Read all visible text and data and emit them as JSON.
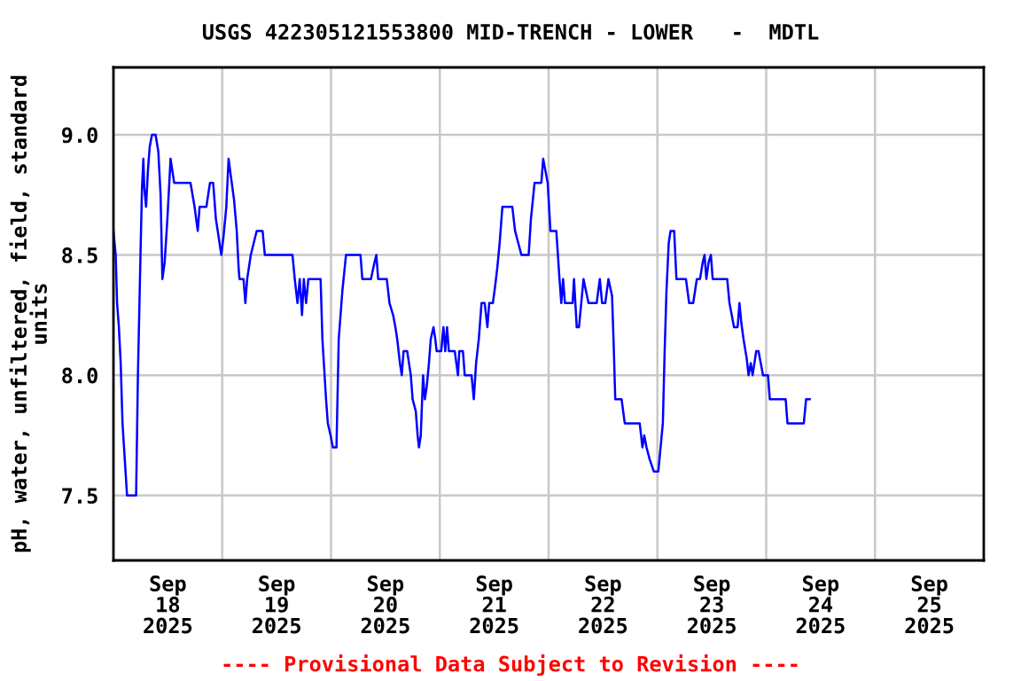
{
  "chart_data": {
    "type": "line",
    "title": "USGS 422305121553800 MID-TRENCH - LOWER   -  MDTL",
    "ylabel": "pH, water, unfiltered, field, standard\nunits",
    "annotations": [
      "---- Provisional Data Subject to Revision ----"
    ],
    "xlim": [
      "2025-09-18T00:00",
      "2025-09-26T00:00"
    ],
    "xticks": [
      {
        "value": "2025-09-18T00:00",
        "label": null
      },
      {
        "value": "2025-09-18T12:00",
        "label": "Sep\n18\n2025"
      },
      {
        "value": "2025-09-19T00:00",
        "label": null
      },
      {
        "value": "2025-09-19T12:00",
        "label": "Sep\n19\n2025"
      },
      {
        "value": "2025-09-20T00:00",
        "label": null
      },
      {
        "value": "2025-09-20T12:00",
        "label": "Sep\n20\n2025"
      },
      {
        "value": "2025-09-21T00:00",
        "label": null
      },
      {
        "value": "2025-09-21T12:00",
        "label": "Sep\n21\n2025"
      },
      {
        "value": "2025-09-22T00:00",
        "label": null
      },
      {
        "value": "2025-09-22T12:00",
        "label": "Sep\n22\n2025"
      },
      {
        "value": "2025-09-23T00:00",
        "label": null
      },
      {
        "value": "2025-09-23T12:00",
        "label": "Sep\n23\n2025"
      },
      {
        "value": "2025-09-24T00:00",
        "label": null
      },
      {
        "value": "2025-09-24T12:00",
        "label": "Sep\n24\n2025"
      },
      {
        "value": "2025-09-25T00:00",
        "label": null
      },
      {
        "value": "2025-09-25T12:00",
        "label": "Sep\n25\n2025"
      },
      {
        "value": "2025-09-26T00:00",
        "label": null
      }
    ],
    "ylim": [
      7.23,
      9.28
    ],
    "yticks": [
      {
        "value": 7.5,
        "label": "7.5"
      },
      {
        "value": 8.0,
        "label": "8.0"
      },
      {
        "value": 8.5,
        "label": "8.5"
      },
      {
        "value": 9.0,
        "label": "9.0"
      }
    ],
    "grid": true,
    "legend": false,
    "line_style": "solid",
    "marker": "none",
    "series": [
      {
        "color": "#0000ff",
        "x": [
          "2025-09-18T00:00",
          "2025-09-18T00:30",
          "2025-09-18T00:48",
          "2025-09-18T01:12",
          "2025-09-18T01:36",
          "2025-09-18T02:00",
          "2025-09-18T02:30",
          "2025-09-18T03:00",
          "2025-09-18T05:00",
          "2025-09-18T05:24",
          "2025-09-18T06:00",
          "2025-09-18T06:18",
          "2025-09-18T06:36",
          "2025-09-18T06:48",
          "2025-09-18T07:12",
          "2025-09-18T07:36",
          "2025-09-18T08:00",
          "2025-09-18T08:30",
          "2025-09-18T09:18",
          "2025-09-18T09:54",
          "2025-09-18T10:24",
          "2025-09-18T10:48",
          "2025-09-18T11:18",
          "2025-09-18T11:54",
          "2025-09-18T12:36",
          "2025-09-18T13:24",
          "2025-09-18T17:00",
          "2025-09-18T17:54",
          "2025-09-18T18:36",
          "2025-09-18T19:00",
          "2025-09-18T20:30",
          "2025-09-18T21:18",
          "2025-09-18T22:00",
          "2025-09-18T22:36",
          "2025-09-18T23:00",
          "2025-09-18T23:48",
          "2025-09-19T00:18",
          "2025-09-19T00:54",
          "2025-09-19T01:24",
          "2025-09-19T02:06",
          "2025-09-19T02:36",
          "2025-09-19T03:12",
          "2025-09-19T03:36",
          "2025-09-19T03:48",
          "2025-09-19T04:42",
          "2025-09-19T05:06",
          "2025-09-19T05:30",
          "2025-09-19T06:18",
          "2025-09-19T07:36",
          "2025-09-19T08:54",
          "2025-09-19T09:24",
          "2025-09-19T15:30",
          "2025-09-19T16:00",
          "2025-09-19T16:36",
          "2025-09-19T17:06",
          "2025-09-19T17:36",
          "2025-09-19T18:00",
          "2025-09-19T18:30",
          "2025-09-19T19:00",
          "2025-09-19T19:54",
          "2025-09-19T21:42",
          "2025-09-19T22:06",
          "2025-09-19T22:54",
          "2025-09-19T23:18",
          "2025-09-19T23:54",
          "2025-09-20T00:24",
          "2025-09-20T01:12",
          "2025-09-20T01:42",
          "2025-09-20T02:30",
          "2025-09-20T03:18",
          "2025-09-20T06:30",
          "2025-09-20T06:54",
          "2025-09-20T08:48",
          "2025-09-20T09:36",
          "2025-09-20T10:00",
          "2025-09-20T10:24",
          "2025-09-20T12:18",
          "2025-09-20T12:54",
          "2025-09-20T13:42",
          "2025-09-20T14:12",
          "2025-09-20T14:36",
          "2025-09-20T15:12",
          "2025-09-20T15:36",
          "2025-09-20T16:00",
          "2025-09-20T16:48",
          "2025-09-20T17:12",
          "2025-09-20T17:36",
          "2025-09-20T18:00",
          "2025-09-20T18:42",
          "2025-09-20T19:06",
          "2025-09-20T19:24",
          "2025-09-20T19:48",
          "2025-09-20T20:18",
          "2025-09-20T20:42",
          "2025-09-20T21:06",
          "2025-09-20T21:36",
          "2025-09-20T22:00",
          "2025-09-20T22:36",
          "2025-09-20T23:00",
          "2025-09-20T23:18",
          "2025-09-21T00:18",
          "2025-09-21T00:48",
          "2025-09-21T01:12",
          "2025-09-21T01:36",
          "2025-09-21T02:00",
          "2025-09-21T03:18",
          "2025-09-21T04:00",
          "2025-09-21T04:18",
          "2025-09-21T05:06",
          "2025-09-21T05:30",
          "2025-09-21T07:00",
          "2025-09-21T07:30",
          "2025-09-21T08:00",
          "2025-09-21T08:36",
          "2025-09-21T09:12",
          "2025-09-21T09:54",
          "2025-09-21T10:30",
          "2025-09-21T10:54",
          "2025-09-21T11:42",
          "2025-09-21T12:12",
          "2025-09-21T12:42",
          "2025-09-21T13:12",
          "2025-09-21T13:48",
          "2025-09-21T16:00",
          "2025-09-21T16:36",
          "2025-09-21T17:18",
          "2025-09-21T18:00",
          "2025-09-21T19:36",
          "2025-09-21T20:06",
          "2025-09-21T20:54",
          "2025-09-21T22:24",
          "2025-09-21T22:48",
          "2025-09-21T23:18",
          "2025-09-21T23:48",
          "2025-09-22T00:24",
          "2025-09-22T01:42",
          "2025-09-22T02:24",
          "2025-09-22T02:48",
          "2025-09-22T03:12",
          "2025-09-22T03:36",
          "2025-09-22T05:18",
          "2025-09-22T05:36",
          "2025-09-22T06:12",
          "2025-09-22T06:42",
          "2025-09-22T07:12",
          "2025-09-22T07:42",
          "2025-09-22T08:48",
          "2025-09-22T10:36",
          "2025-09-22T11:18",
          "2025-09-22T11:48",
          "2025-09-22T12:30",
          "2025-09-22T13:12",
          "2025-09-22T14:00",
          "2025-09-22T14:24",
          "2025-09-22T14:42",
          "2025-09-22T16:06",
          "2025-09-22T16:48",
          "2025-09-22T20:06",
          "2025-09-22T20:42",
          "2025-09-22T21:06",
          "2025-09-22T21:36",
          "2025-09-22T22:18",
          "2025-09-22T23:12",
          "2025-09-23T00:12",
          "2025-09-23T00:42",
          "2025-09-23T01:12",
          "2025-09-23T01:36",
          "2025-09-23T02:00",
          "2025-09-23T02:30",
          "2025-09-23T02:54",
          "2025-09-23T03:42",
          "2025-09-23T04:12",
          "2025-09-23T06:18",
          "2025-09-23T07:00",
          "2025-09-23T07:54",
          "2025-09-23T08:42",
          "2025-09-23T09:24",
          "2025-09-23T10:00",
          "2025-09-23T10:24",
          "2025-09-23T10:48",
          "2025-09-23T11:18",
          "2025-09-23T11:48",
          "2025-09-23T12:12",
          "2025-09-23T15:24",
          "2025-09-23T15:54",
          "2025-09-23T16:24",
          "2025-09-23T16:54",
          "2025-09-23T17:42",
          "2025-09-23T18:06",
          "2025-09-23T18:30",
          "2025-09-23T19:00",
          "2025-09-23T19:42",
          "2025-09-23T20:06",
          "2025-09-23T20:36",
          "2025-09-23T21:00",
          "2025-09-23T21:24",
          "2025-09-23T21:48",
          "2025-09-23T22:18",
          "2025-09-23T22:48",
          "2025-09-23T23:18",
          "2025-09-24T00:24",
          "2025-09-24T00:48",
          "2025-09-24T04:18",
          "2025-09-24T04:42",
          "2025-09-24T08:18",
          "2025-09-24T08:48",
          "2025-09-24T09:36"
        ],
        "values": [
          8.6,
          8.5,
          8.3,
          8.2,
          8.05,
          7.8,
          7.65,
          7.5,
          7.5,
          8.0,
          8.53,
          8.78,
          8.9,
          8.78,
          8.7,
          8.85,
          8.95,
          9.0,
          9.0,
          8.93,
          8.75,
          8.4,
          8.47,
          8.65,
          8.9,
          8.8,
          8.8,
          8.7,
          8.6,
          8.7,
          8.7,
          8.8,
          8.8,
          8.65,
          8.6,
          8.5,
          8.58,
          8.7,
          8.9,
          8.8,
          8.73,
          8.6,
          8.45,
          8.4,
          8.4,
          8.3,
          8.4,
          8.5,
          8.6,
          8.6,
          8.5,
          8.5,
          8.4,
          8.3,
          8.4,
          8.25,
          8.4,
          8.3,
          8.4,
          8.4,
          8.4,
          8.15,
          7.9,
          7.8,
          7.75,
          7.7,
          7.7,
          8.15,
          8.35,
          8.5,
          8.5,
          8.4,
          8.4,
          8.47,
          8.5,
          8.4,
          8.4,
          8.3,
          8.25,
          8.2,
          8.15,
          8.05,
          8.0,
          8.1,
          8.1,
          8.05,
          8.0,
          7.9,
          7.85,
          7.75,
          7.7,
          7.75,
          8.0,
          7.9,
          7.95,
          8.05,
          8.15,
          8.2,
          8.15,
          8.1,
          8.1,
          8.2,
          8.1,
          8.2,
          8.1,
          8.1,
          8.0,
          8.1,
          8.1,
          8.0,
          8.0,
          7.9,
          8.05,
          8.15,
          8.3,
          8.3,
          8.2,
          8.3,
          8.3,
          8.37,
          8.45,
          8.55,
          8.7,
          8.7,
          8.6,
          8.55,
          8.5,
          8.5,
          8.65,
          8.8,
          8.8,
          8.9,
          8.85,
          8.8,
          8.6,
          8.6,
          8.4,
          8.3,
          8.4,
          8.3,
          8.3,
          8.4,
          8.2,
          8.2,
          8.3,
          8.4,
          8.3,
          8.3,
          8.4,
          8.3,
          8.3,
          8.4,
          8.33,
          8.1,
          7.9,
          7.9,
          7.8,
          7.8,
          7.7,
          7.75,
          7.7,
          7.65,
          7.6,
          7.6,
          7.7,
          7.8,
          8.1,
          8.35,
          8.55,
          8.6,
          8.6,
          8.4,
          8.4,
          8.3,
          8.3,
          8.4,
          8.4,
          8.47,
          8.5,
          8.4,
          8.47,
          8.5,
          8.4,
          8.4,
          8.3,
          8.25,
          8.2,
          8.2,
          8.3,
          8.22,
          8.15,
          8.07,
          8.0,
          8.05,
          8.0,
          8.05,
          8.1,
          8.1,
          8.05,
          8.0,
          8.0,
          7.9,
          7.9,
          7.8,
          7.8,
          7.9,
          7.9
        ]
      }
    ]
  }
}
